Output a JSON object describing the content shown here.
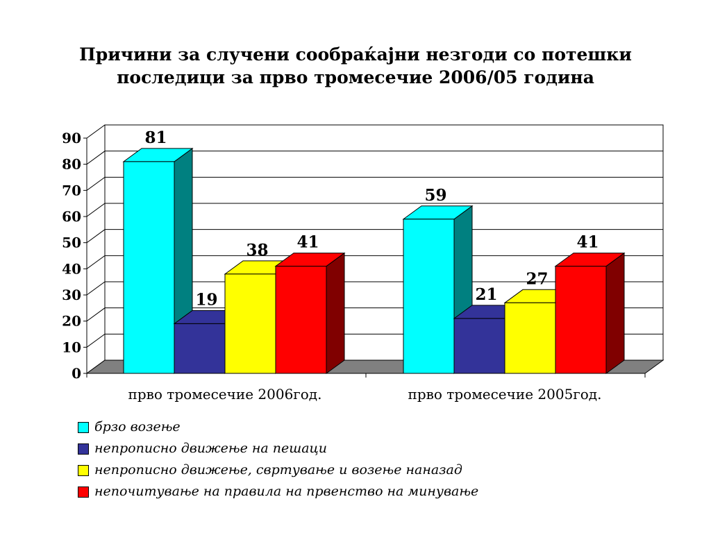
{
  "title_line1": "Причини за случени сообраќајни незгоди со потешки",
  "title_line2": "последици за прво тромесечие 2006/05 година",
  "chart_data": {
    "type": "bar",
    "title": "Причини за случени сообраќајни незгоди со потешки последици за прво тромесечие 2006/05 година",
    "categories": [
      "прво тромесечие 2006год.",
      "прво тромесечие 2005год."
    ],
    "series": [
      {
        "name": "брзо возење",
        "values": [
          81,
          59
        ],
        "color": "#00ffff",
        "side": "#008080"
      },
      {
        "name": "непрописно движење на пешаци",
        "values": [
          19,
          21
        ],
        "color": "#333399",
        "side": "#1a1a4d"
      },
      {
        "name": "непрописно движење, свртување и возење наназад",
        "values": [
          38,
          27
        ],
        "color": "#ffff00",
        "side": "#999900"
      },
      {
        "name": "непочитување на правила на првенство на минување",
        "values": [
          41,
          41
        ],
        "color": "#ff0000",
        "side": "#800000"
      }
    ],
    "ylim": [
      0,
      90
    ],
    "yticks": [
      0,
      10,
      20,
      30,
      40,
      50,
      60,
      70,
      80,
      90
    ],
    "grid": true,
    "legend": "bottom-left"
  }
}
